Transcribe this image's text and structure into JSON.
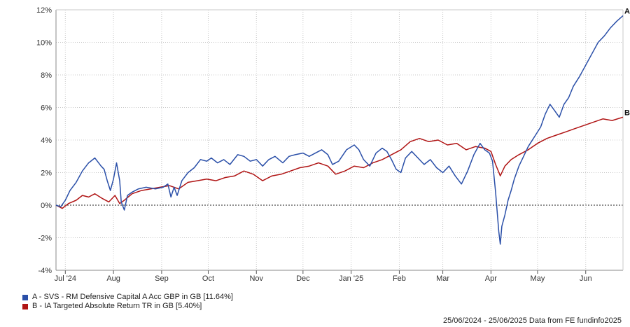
{
  "chart_data": {
    "type": "line",
    "ylim": [
      -4,
      12
    ],
    "y_ticks": [
      -4,
      -2,
      0,
      2,
      4,
      6,
      8,
      10,
      12
    ],
    "y_tick_labels": [
      "-4%",
      "-2%",
      "0%",
      "2%",
      "4%",
      "6%",
      "8%",
      "10%",
      "12%"
    ],
    "x_range": [
      "2024-06-25",
      "2025-06-25"
    ],
    "x_ticks": [
      {
        "date": "2024-07-01",
        "label": "Jul '24"
      },
      {
        "date": "2024-08-01",
        "label": "Aug"
      },
      {
        "date": "2024-09-01",
        "label": "Sep"
      },
      {
        "date": "2024-10-01",
        "label": "Oct"
      },
      {
        "date": "2024-11-01",
        "label": "Nov"
      },
      {
        "date": "2024-12-01",
        "label": "Dec"
      },
      {
        "date": "2025-01-01",
        "label": "Jan '25"
      },
      {
        "date": "2025-02-01",
        "label": "Feb"
      },
      {
        "date": "2025-03-01",
        "label": "Mar"
      },
      {
        "date": "2025-04-01",
        "label": "Apr"
      },
      {
        "date": "2025-05-01",
        "label": "May"
      },
      {
        "date": "2025-06-01",
        "label": "Jun"
      }
    ],
    "grid": true,
    "zero_line": true,
    "legend_position": "bottom-left",
    "series": [
      {
        "name": "A - SVS - RM Defensive Capital A Acc GBP in GB [11.64%]",
        "end_label": "A",
        "color": "#2a4fa8",
        "points": [
          [
            "2024-06-25",
            0.0
          ],
          [
            "2024-06-28",
            -0.1
          ],
          [
            "2024-07-01",
            0.3
          ],
          [
            "2024-07-04",
            0.9
          ],
          [
            "2024-07-08",
            1.4
          ],
          [
            "2024-07-12",
            2.1
          ],
          [
            "2024-07-16",
            2.6
          ],
          [
            "2024-07-20",
            2.9
          ],
          [
            "2024-07-24",
            2.4
          ],
          [
            "2024-07-26",
            2.2
          ],
          [
            "2024-07-28",
            1.5
          ],
          [
            "2024-07-30",
            0.9
          ],
          [
            "2024-08-01",
            1.6
          ],
          [
            "2024-08-03",
            2.6
          ],
          [
            "2024-08-05",
            1.5
          ],
          [
            "2024-08-06",
            0.2
          ],
          [
            "2024-08-08",
            -0.3
          ],
          [
            "2024-08-10",
            0.6
          ],
          [
            "2024-08-13",
            0.8
          ],
          [
            "2024-08-17",
            1.0
          ],
          [
            "2024-08-22",
            1.1
          ],
          [
            "2024-08-28",
            1.0
          ],
          [
            "2024-09-02",
            1.1
          ],
          [
            "2024-09-05",
            1.3
          ],
          [
            "2024-09-07",
            0.5
          ],
          [
            "2024-09-09",
            1.1
          ],
          [
            "2024-09-11",
            0.6
          ],
          [
            "2024-09-14",
            1.5
          ],
          [
            "2024-09-18",
            2.0
          ],
          [
            "2024-09-22",
            2.3
          ],
          [
            "2024-09-26",
            2.8
          ],
          [
            "2024-09-30",
            2.7
          ],
          [
            "2024-10-03",
            2.9
          ],
          [
            "2024-10-07",
            2.6
          ],
          [
            "2024-10-11",
            2.8
          ],
          [
            "2024-10-15",
            2.5
          ],
          [
            "2024-10-20",
            3.1
          ],
          [
            "2024-10-24",
            3.0
          ],
          [
            "2024-10-28",
            2.7
          ],
          [
            "2024-11-01",
            2.8
          ],
          [
            "2024-11-05",
            2.4
          ],
          [
            "2024-11-09",
            2.8
          ],
          [
            "2024-11-13",
            3.0
          ],
          [
            "2024-11-18",
            2.6
          ],
          [
            "2024-11-22",
            3.0
          ],
          [
            "2024-11-26",
            3.1
          ],
          [
            "2024-12-01",
            3.2
          ],
          [
            "2024-12-05",
            3.0
          ],
          [
            "2024-12-09",
            3.2
          ],
          [
            "2024-12-13",
            3.4
          ],
          [
            "2024-12-17",
            3.1
          ],
          [
            "2024-12-20",
            2.5
          ],
          [
            "2024-12-24",
            2.7
          ],
          [
            "2024-12-29",
            3.4
          ],
          [
            "2025-01-03",
            3.7
          ],
          [
            "2025-01-06",
            3.4
          ],
          [
            "2025-01-09",
            2.8
          ],
          [
            "2025-01-13",
            2.4
          ],
          [
            "2025-01-17",
            3.2
          ],
          [
            "2025-01-21",
            3.5
          ],
          [
            "2025-01-24",
            3.3
          ],
          [
            "2025-01-27",
            2.8
          ],
          [
            "2025-01-30",
            2.2
          ],
          [
            "2025-02-02",
            2.0
          ],
          [
            "2025-02-05",
            2.9
          ],
          [
            "2025-02-09",
            3.3
          ],
          [
            "2025-02-13",
            2.9
          ],
          [
            "2025-02-17",
            2.5
          ],
          [
            "2025-02-21",
            2.8
          ],
          [
            "2025-02-25",
            2.3
          ],
          [
            "2025-03-01",
            2.0
          ],
          [
            "2025-03-05",
            2.4
          ],
          [
            "2025-03-09",
            1.8
          ],
          [
            "2025-03-13",
            1.3
          ],
          [
            "2025-03-17",
            2.1
          ],
          [
            "2025-03-21",
            3.1
          ],
          [
            "2025-03-25",
            3.8
          ],
          [
            "2025-03-28",
            3.4
          ],
          [
            "2025-03-31",
            3.2
          ],
          [
            "2025-04-02",
            2.7
          ],
          [
            "2025-04-04",
            0.8
          ],
          [
            "2025-04-06",
            -1.6
          ],
          [
            "2025-04-07",
            -2.4
          ],
          [
            "2025-04-08",
            -1.3
          ],
          [
            "2025-04-10",
            -0.6
          ],
          [
            "2025-04-12",
            0.3
          ],
          [
            "2025-04-14",
            0.9
          ],
          [
            "2025-04-16",
            1.6
          ],
          [
            "2025-04-19",
            2.4
          ],
          [
            "2025-04-22",
            3.0
          ],
          [
            "2025-04-25",
            3.6
          ],
          [
            "2025-04-29",
            4.2
          ],
          [
            "2025-05-03",
            4.8
          ],
          [
            "2025-05-06",
            5.6
          ],
          [
            "2025-05-09",
            6.2
          ],
          [
            "2025-05-12",
            5.8
          ],
          [
            "2025-05-15",
            5.4
          ],
          [
            "2025-05-18",
            6.2
          ],
          [
            "2025-05-21",
            6.6
          ],
          [
            "2025-05-24",
            7.3
          ],
          [
            "2025-05-28",
            7.9
          ],
          [
            "2025-06-01",
            8.6
          ],
          [
            "2025-06-05",
            9.3
          ],
          [
            "2025-06-09",
            10.0
          ],
          [
            "2025-06-13",
            10.4
          ],
          [
            "2025-06-17",
            10.9
          ],
          [
            "2025-06-21",
            11.3
          ],
          [
            "2025-06-25",
            11.64
          ]
        ]
      },
      {
        "name": "B - IA Targeted Absolute Return TR in GB [5.40%]",
        "end_label": "B",
        "color": "#b01515",
        "points": [
          [
            "2024-06-25",
            0.0
          ],
          [
            "2024-06-29",
            -0.2
          ],
          [
            "2024-07-03",
            0.1
          ],
          [
            "2024-07-08",
            0.3
          ],
          [
            "2024-07-12",
            0.6
          ],
          [
            "2024-07-16",
            0.5
          ],
          [
            "2024-07-20",
            0.7
          ],
          [
            "2024-07-25",
            0.4
          ],
          [
            "2024-07-29",
            0.2
          ],
          [
            "2024-08-02",
            0.6
          ],
          [
            "2024-08-05",
            0.1
          ],
          [
            "2024-08-08",
            0.3
          ],
          [
            "2024-08-13",
            0.7
          ],
          [
            "2024-08-19",
            0.9
          ],
          [
            "2024-08-25",
            1.0
          ],
          [
            "2024-08-31",
            1.1
          ],
          [
            "2024-09-06",
            1.2
          ],
          [
            "2024-09-12",
            1.0
          ],
          [
            "2024-09-18",
            1.4
          ],
          [
            "2024-09-24",
            1.5
          ],
          [
            "2024-09-30",
            1.6
          ],
          [
            "2024-10-06",
            1.5
          ],
          [
            "2024-10-12",
            1.7
          ],
          [
            "2024-10-18",
            1.8
          ],
          [
            "2024-10-24",
            2.1
          ],
          [
            "2024-10-30",
            1.9
          ],
          [
            "2024-11-05",
            1.5
          ],
          [
            "2024-11-11",
            1.8
          ],
          [
            "2024-11-17",
            1.9
          ],
          [
            "2024-11-23",
            2.1
          ],
          [
            "2024-11-29",
            2.3
          ],
          [
            "2024-12-05",
            2.4
          ],
          [
            "2024-12-11",
            2.6
          ],
          [
            "2024-12-17",
            2.4
          ],
          [
            "2024-12-22",
            1.9
          ],
          [
            "2024-12-28",
            2.1
          ],
          [
            "2025-01-03",
            2.4
          ],
          [
            "2025-01-09",
            2.3
          ],
          [
            "2025-01-15",
            2.6
          ],
          [
            "2025-01-21",
            2.8
          ],
          [
            "2025-01-27",
            3.1
          ],
          [
            "2025-02-02",
            3.4
          ],
          [
            "2025-02-08",
            3.9
          ],
          [
            "2025-02-14",
            4.1
          ],
          [
            "2025-02-20",
            3.9
          ],
          [
            "2025-02-26",
            4.0
          ],
          [
            "2025-03-04",
            3.7
          ],
          [
            "2025-03-10",
            3.8
          ],
          [
            "2025-03-16",
            3.4
          ],
          [
            "2025-03-22",
            3.6
          ],
          [
            "2025-03-28",
            3.5
          ],
          [
            "2025-04-01",
            3.3
          ],
          [
            "2025-04-04",
            2.5
          ],
          [
            "2025-04-07",
            1.8
          ],
          [
            "2025-04-10",
            2.4
          ],
          [
            "2025-04-14",
            2.8
          ],
          [
            "2025-04-19",
            3.1
          ],
          [
            "2025-04-25",
            3.4
          ],
          [
            "2025-05-01",
            3.8
          ],
          [
            "2025-05-07",
            4.1
          ],
          [
            "2025-05-13",
            4.3
          ],
          [
            "2025-05-19",
            4.5
          ],
          [
            "2025-05-25",
            4.7
          ],
          [
            "2025-05-31",
            4.9
          ],
          [
            "2025-06-06",
            5.1
          ],
          [
            "2025-06-12",
            5.3
          ],
          [
            "2025-06-18",
            5.2
          ],
          [
            "2025-06-25",
            5.4
          ]
        ]
      }
    ]
  },
  "footer_text": "25/06/2024 - 25/06/2025 Data from FE fundinfo2025"
}
